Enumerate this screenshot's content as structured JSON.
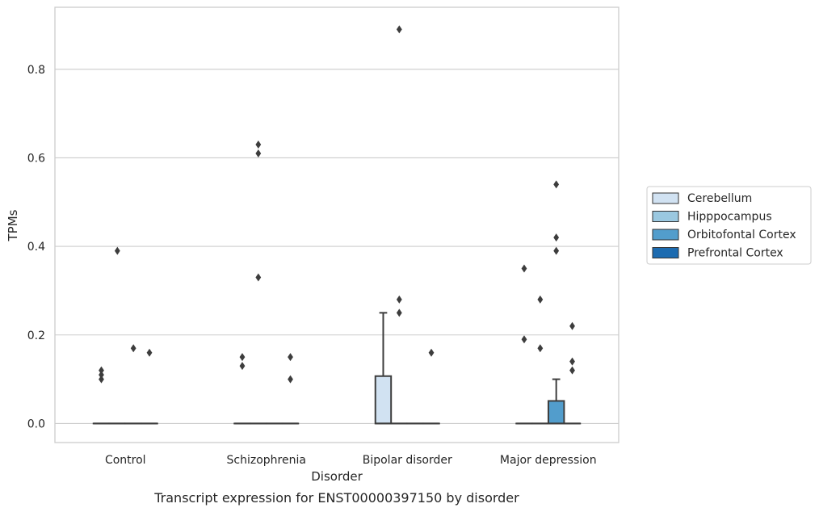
{
  "chart_data": {
    "type": "box",
    "caption": "Transcript expression for ENST00000397150 by disorder",
    "xlabel": "Disorder",
    "ylabel": "TPMs",
    "ylim": [
      -0.043,
      0.94
    ],
    "yticks": [
      "0.0",
      "0.2",
      "0.4",
      "0.6",
      "0.8"
    ],
    "ytick_values": [
      0.0,
      0.2,
      0.4,
      0.6,
      0.8
    ],
    "grid": "horizontal",
    "legend_position": "right",
    "categories": [
      "Control",
      "Schizophrenia",
      "Bipolar disorder",
      "Major depression"
    ],
    "series": [
      {
        "name": "Cerebellum",
        "color": "#d1e2f2",
        "boxes": [
          {
            "q1": 0,
            "median": 0,
            "q3": 0,
            "whisker_low": 0,
            "whisker_high": 0,
            "outliers": [
              0.1,
              0.11,
              0.12
            ]
          },
          {
            "q1": 0,
            "median": 0,
            "q3": 0,
            "whisker_low": 0,
            "whisker_high": 0,
            "outliers": [
              0.13,
              0.15
            ]
          },
          {
            "q1": 0,
            "median": 0,
            "q3": 0.107,
            "whisker_low": 0,
            "whisker_high": 0.25,
            "outliers": []
          },
          {
            "q1": 0,
            "median": 0,
            "q3": 0,
            "whisker_low": 0,
            "whisker_high": 0,
            "outliers": [
              0.19,
              0.35
            ]
          }
        ]
      },
      {
        "name": "Hipppocampus",
        "color": "#9ac8e0",
        "boxes": [
          {
            "q1": 0,
            "median": 0,
            "q3": 0,
            "whisker_low": 0,
            "whisker_high": 0,
            "outliers": [
              0.39
            ]
          },
          {
            "q1": 0,
            "median": 0,
            "q3": 0,
            "whisker_low": 0,
            "whisker_high": 0,
            "outliers": [
              0.33,
              0.61,
              0.63
            ]
          },
          {
            "q1": 0,
            "median": 0,
            "q3": 0,
            "whisker_low": 0,
            "whisker_high": 0,
            "outliers": [
              0.25,
              0.28,
              0.89
            ]
          },
          {
            "q1": 0,
            "median": 0,
            "q3": 0,
            "whisker_low": 0,
            "whisker_high": 0,
            "outliers": [
              0.17,
              0.28
            ]
          }
        ]
      },
      {
        "name": "Orbitofontal Cortex",
        "color": "#529dcc",
        "boxes": [
          {
            "q1": 0,
            "median": 0,
            "q3": 0,
            "whisker_low": 0,
            "whisker_high": 0,
            "outliers": [
              0.17
            ]
          },
          {
            "q1": 0,
            "median": 0,
            "q3": 0,
            "whisker_low": 0,
            "whisker_high": 0,
            "outliers": []
          },
          {
            "q1": 0,
            "median": 0,
            "q3": 0,
            "whisker_low": 0,
            "whisker_high": 0,
            "outliers": []
          },
          {
            "q1": 0,
            "median": 0,
            "q3": 0.051,
            "whisker_low": 0,
            "whisker_high": 0.1,
            "outliers": [
              0.39,
              0.42,
              0.54
            ]
          }
        ]
      },
      {
        "name": "Prefrontal Cortex",
        "color": "#1c6bb0",
        "boxes": [
          {
            "q1": 0,
            "median": 0,
            "q3": 0,
            "whisker_low": 0,
            "whisker_high": 0,
            "outliers": [
              0.16
            ]
          },
          {
            "q1": 0,
            "median": 0,
            "q3": 0,
            "whisker_low": 0,
            "whisker_high": 0,
            "outliers": [
              0.1,
              0.15
            ]
          },
          {
            "q1": 0,
            "median": 0,
            "q3": 0,
            "whisker_low": 0,
            "whisker_high": 0,
            "outliers": [
              0.16
            ]
          },
          {
            "q1": 0,
            "median": 0,
            "q3": 0,
            "whisker_low": 0,
            "whisker_high": 0,
            "outliers": [
              0.12,
              0.14,
              0.22
            ]
          }
        ]
      }
    ]
  }
}
